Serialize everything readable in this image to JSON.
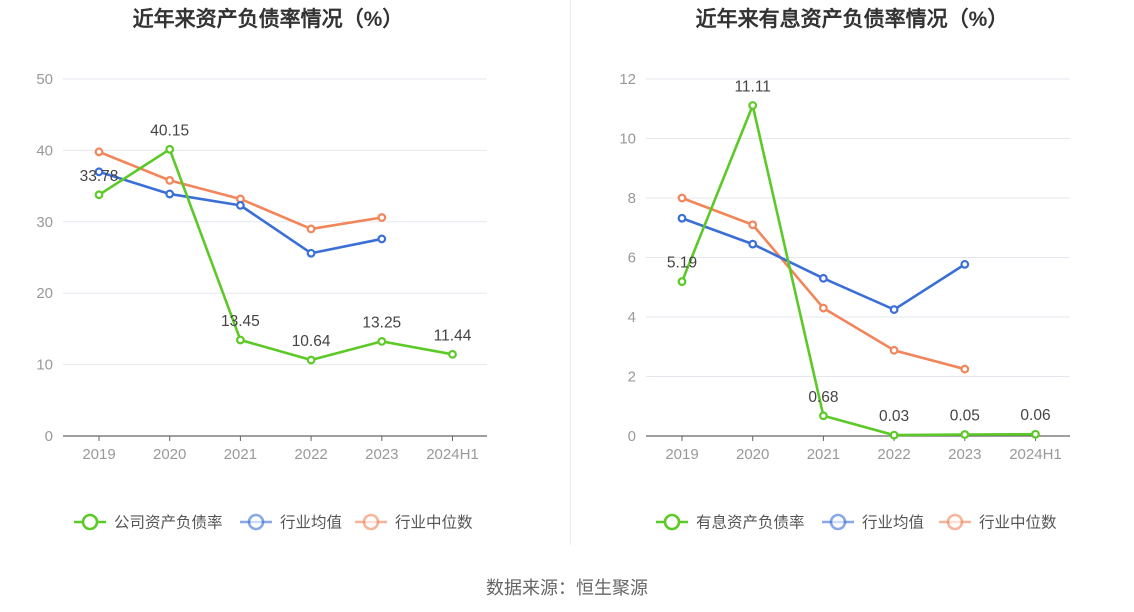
{
  "colors": {
    "company": "#5cc927",
    "avg": "#3b6fd8",
    "median": "#f2855a",
    "axis": "#666666",
    "grid": "#e4e7ee",
    "tick_text": "#999999",
    "label_text": "#444444",
    "title_text": "#333333"
  },
  "source": "数据来源：恒生聚源",
  "chart_data": [
    {
      "type": "line",
      "title": "近年来资产负债率情况（%）",
      "categories": [
        "2019",
        "2020",
        "2021",
        "2022",
        "2023",
        "2024H1"
      ],
      "ylim": [
        0,
        50
      ],
      "yticks": [
        0,
        10,
        20,
        30,
        40,
        50
      ],
      "grid": true,
      "legend_position": "bottom",
      "series": [
        {
          "name": "公司资产负债率",
          "key": "company",
          "values": [
            33.78,
            40.15,
            13.45,
            10.64,
            13.25,
            11.44
          ],
          "labels": [
            "33.78",
            "40.15",
            "13.45",
            "10.64",
            "13.25",
            "11.44"
          ]
        },
        {
          "name": "行业均值",
          "key": "avg",
          "values": [
            37.0,
            33.9,
            32.3,
            25.6,
            27.6,
            null
          ]
        },
        {
          "name": "行业中位数",
          "key": "median",
          "values": [
            39.8,
            35.8,
            33.2,
            29.0,
            30.6,
            null
          ]
        }
      ]
    },
    {
      "type": "line",
      "title": "近年来有息资产负债率情况（%）",
      "categories": [
        "2019",
        "2020",
        "2021",
        "2022",
        "2023",
        "2024H1"
      ],
      "ylim": [
        0,
        12
      ],
      "yticks": [
        0,
        2,
        4,
        6,
        8,
        10,
        12
      ],
      "grid": true,
      "legend_position": "bottom",
      "series": [
        {
          "name": "有息资产负债率",
          "key": "company",
          "values": [
            5.19,
            11.11,
            0.68,
            0.03,
            0.05,
            0.06
          ],
          "labels": [
            "5.19",
            "11.11",
            "0.68",
            "0.03",
            "0.05",
            "0.06"
          ]
        },
        {
          "name": "行业均值",
          "key": "avg",
          "values": [
            7.32,
            6.45,
            5.3,
            4.25,
            5.77,
            null
          ]
        },
        {
          "name": "行业中位数",
          "key": "median",
          "values": [
            8.0,
            7.1,
            4.3,
            2.88,
            2.25,
            null
          ]
        }
      ]
    }
  ]
}
